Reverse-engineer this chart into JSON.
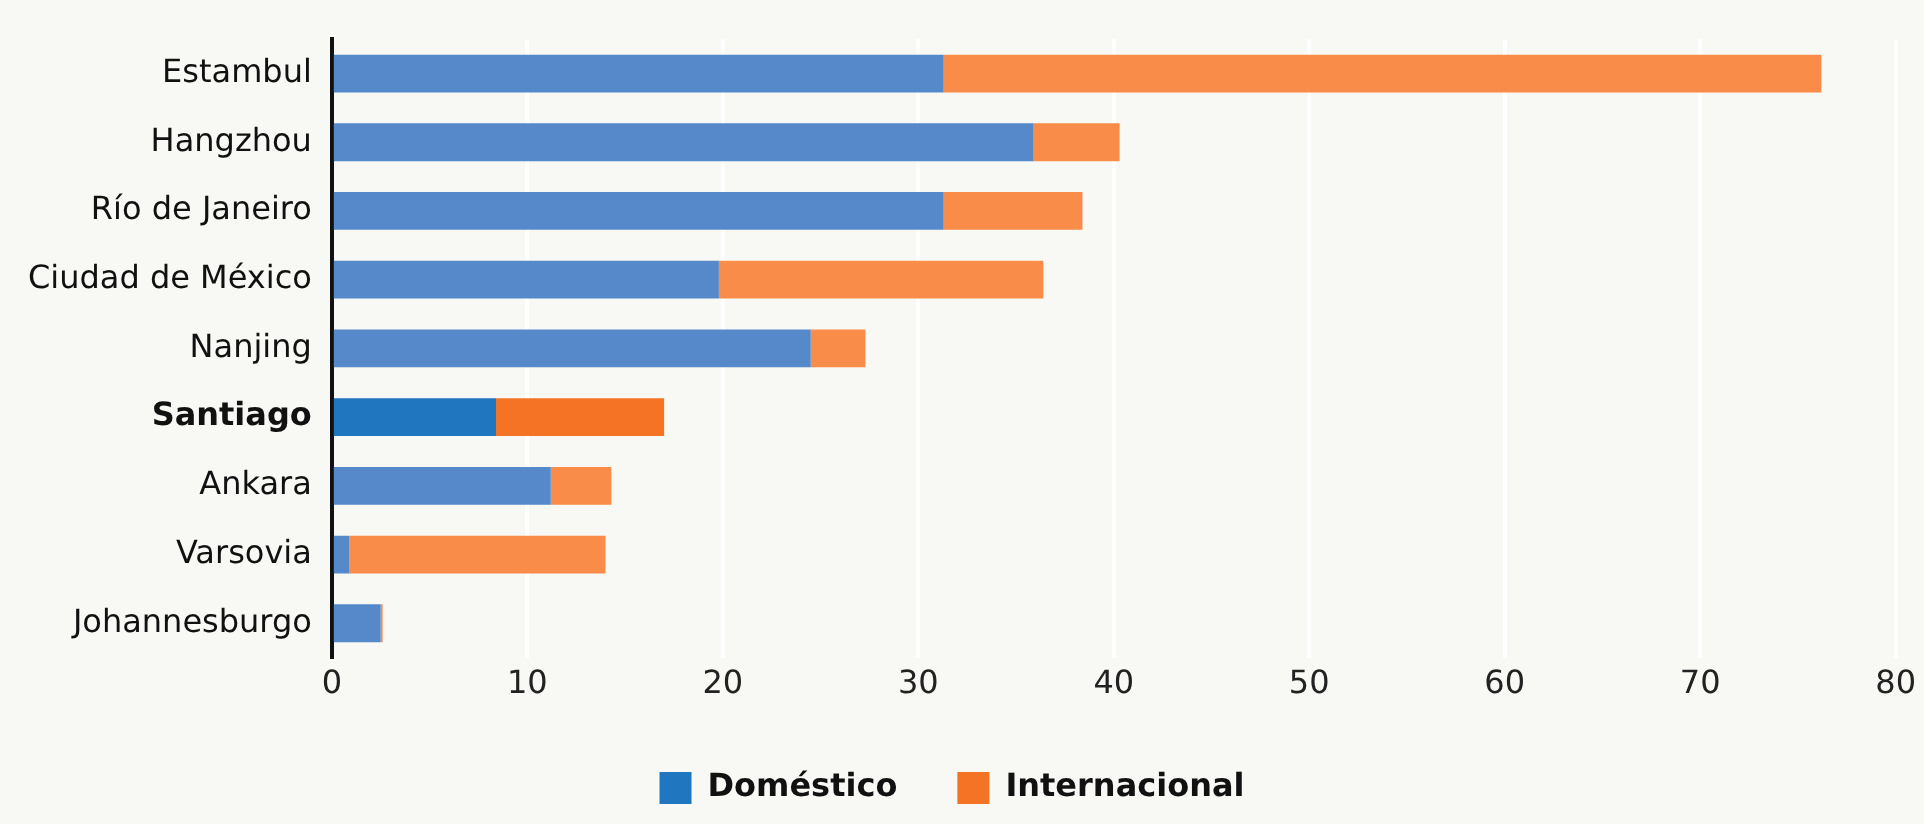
{
  "chart_data": {
    "type": "bar",
    "orientation": "horizontal",
    "stacked": true,
    "categories": [
      "Estambul",
      "Hangzhou",
      "Río de Janeiro",
      "Ciudad de México",
      "Nanjing",
      "Santiago",
      "Ankara",
      "Varsovia",
      "Johannesburgo"
    ],
    "series": [
      {
        "name": "Doméstico",
        "color": "#2176c0",
        "colors": [
          "#5589c9",
          "#5589c9",
          "#5589c9",
          "#5589c9",
          "#5589c9",
          "#2176c0",
          "#5589c9",
          "#5589c9",
          "#5589c9"
        ],
        "values": [
          31.3,
          35.9,
          31.3,
          19.8,
          24.5,
          8.4,
          11.2,
          0.9,
          2.5
        ]
      },
      {
        "name": "Internacional",
        "color": "#f47324",
        "colors": [
          "#f88c48",
          "#f88c48",
          "#f88c48",
          "#f88c48",
          "#f88c48",
          "#f47324",
          "#f88c48",
          "#f88c48",
          "#f88c48"
        ],
        "values": [
          44.9,
          4.4,
          7.1,
          16.6,
          2.8,
          8.6,
          3.1,
          13.1,
          0.1
        ]
      }
    ],
    "xlim": [
      0,
      80
    ],
    "xticks": [
      0,
      10,
      20,
      30,
      40,
      50,
      60,
      70,
      80
    ],
    "grid": "x",
    "legend": "bottom"
  }
}
